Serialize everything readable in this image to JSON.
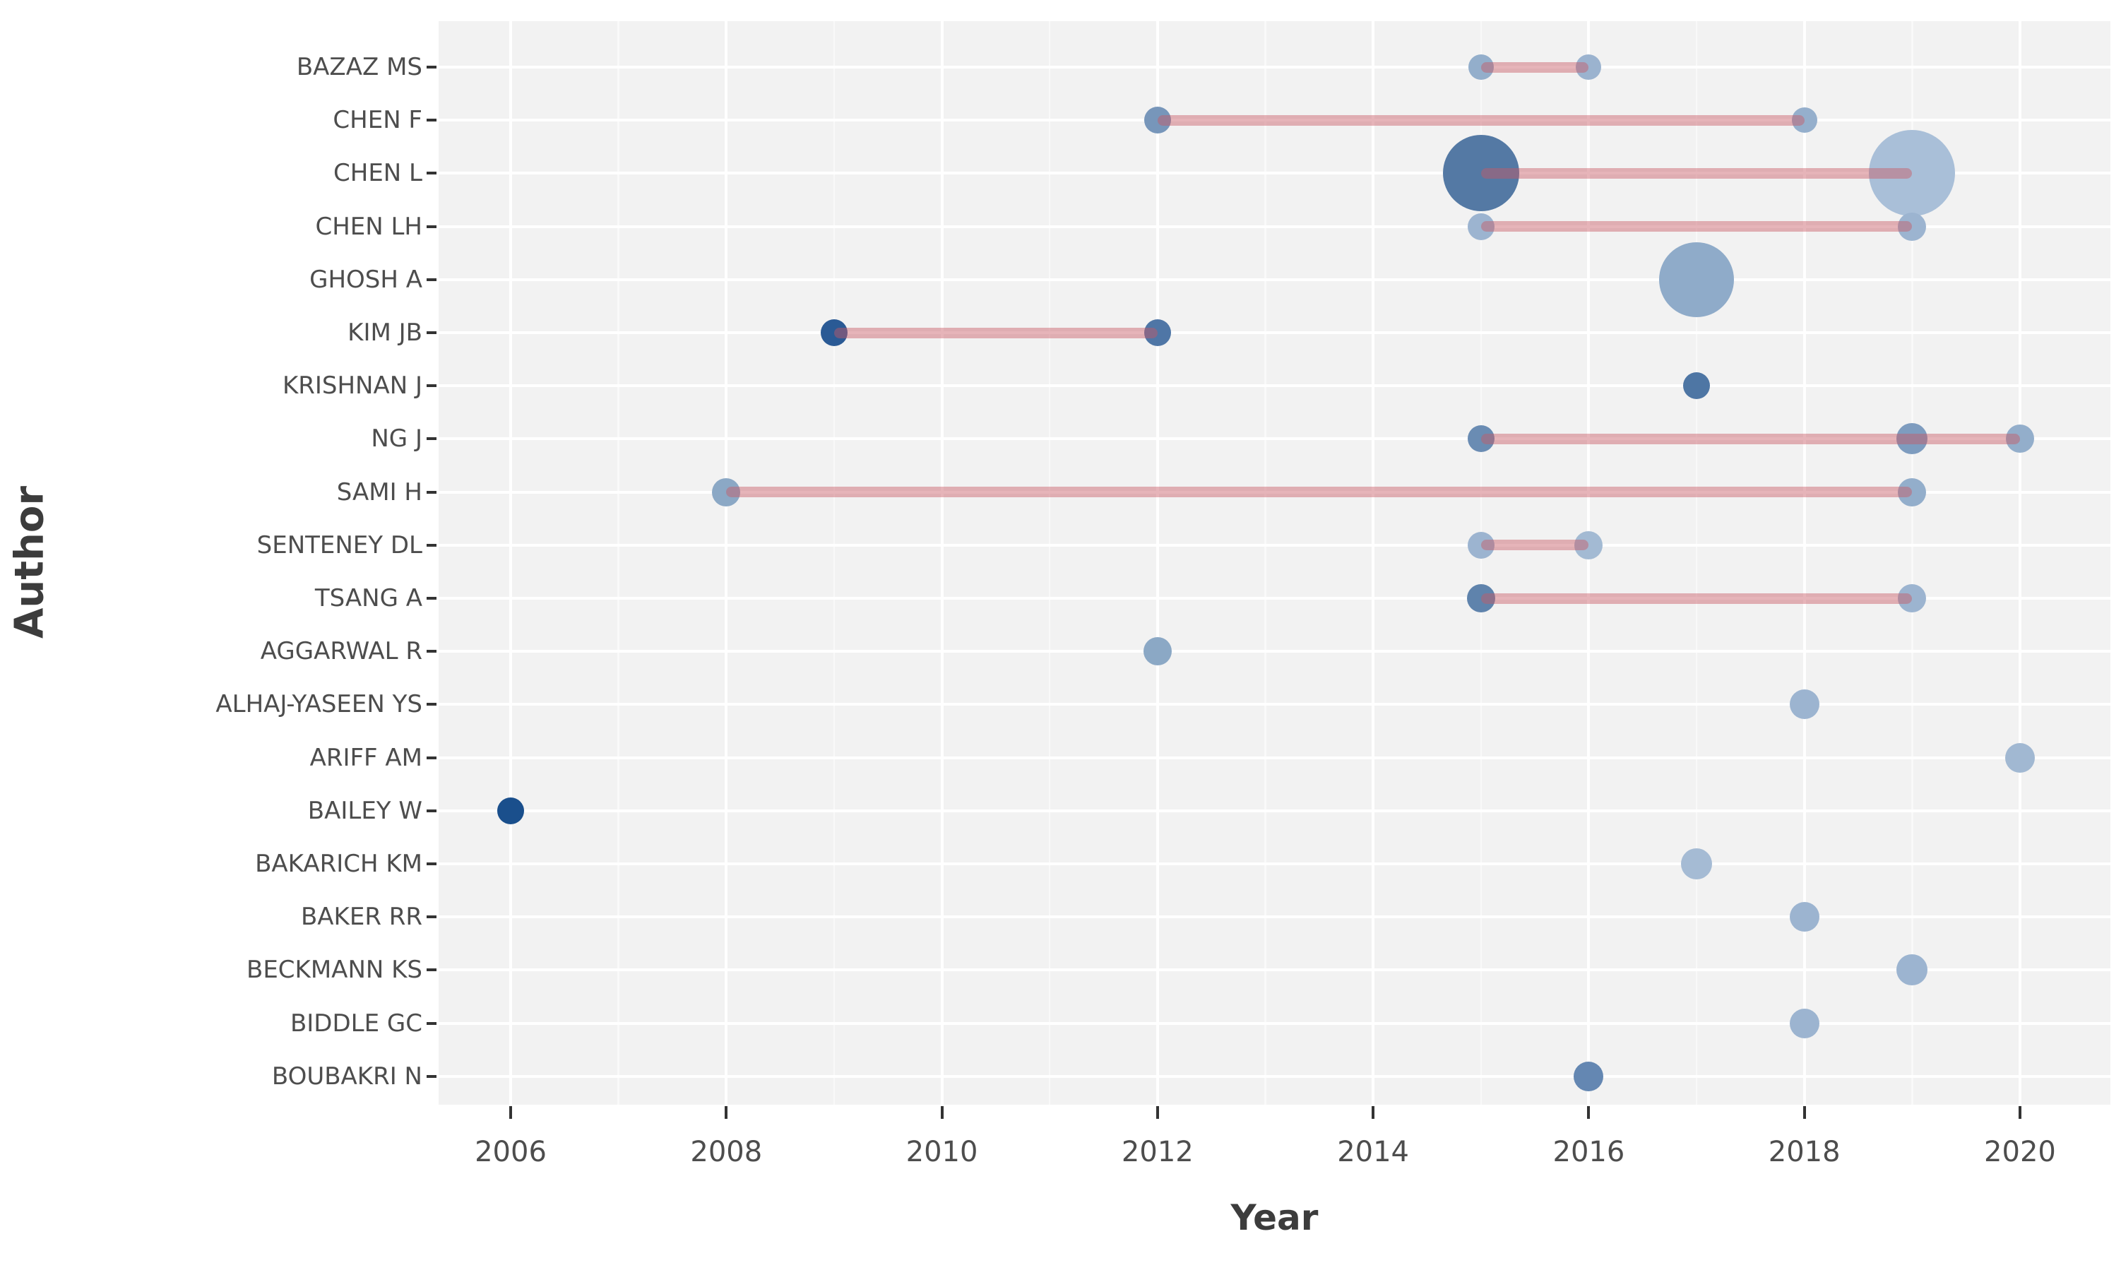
{
  "chart_data": {
    "type": "scatter",
    "title": "",
    "xlabel": "Year",
    "ylabel": "Author",
    "legend": "none",
    "grid": "on",
    "x_ticks": [
      2006,
      2008,
      2010,
      2012,
      2014,
      2016,
      2018,
      2020
    ],
    "x_minor_ticks": [
      2005,
      2007,
      2009,
      2011,
      2013,
      2015,
      2017,
      2019,
      2021
    ],
    "x_range": [
      2005.3,
      2020.85
    ],
    "colors": {
      "panel_bg": "#f2f2f2",
      "gridline": "#ffffff",
      "tick_mark": "#333333",
      "tick_text": "#4d4d4d",
      "axis_title": "#3c3c3c",
      "timeline_line": "rgba(200,88,99,0.45)"
    },
    "authors": [
      {
        "name": "BAZAZ MS",
        "line": {
          "from": 2015,
          "to": 2016
        },
        "points": [
          {
            "year": 2015,
            "r": 18,
            "color": "#93aecb"
          },
          {
            "year": 2016,
            "r": 18,
            "color": "#9bb3cf"
          }
        ]
      },
      {
        "name": "CHEN F",
        "line": {
          "from": 2012,
          "to": 2018
        },
        "points": [
          {
            "year": 2012,
            "r": 19,
            "color": "#7796ba"
          },
          {
            "year": 2018,
            "r": 18,
            "color": "#95afcc"
          }
        ]
      },
      {
        "name": "CHEN L",
        "line": {
          "from": 2015,
          "to": 2019
        },
        "points": [
          {
            "year": 2015,
            "r": 54,
            "color": "#5479a4"
          },
          {
            "year": 2019,
            "r": 61,
            "color": "#a9bfd8"
          }
        ]
      },
      {
        "name": "CHEN LH",
        "line": {
          "from": 2015,
          "to": 2019
        },
        "points": [
          {
            "year": 2015,
            "r": 19,
            "color": "#9cb4d0"
          },
          {
            "year": 2019,
            "r": 20,
            "color": "#9cb4d0"
          }
        ]
      },
      {
        "name": "GHOSH A",
        "line": null,
        "points": [
          {
            "year": 2017,
            "r": 53,
            "color": "#8fabc9"
          }
        ]
      },
      {
        "name": "KIM JB",
        "line": {
          "from": 2009,
          "to": 2012
        },
        "points": [
          {
            "year": 2009,
            "r": 19,
            "color": "#2a5a95"
          },
          {
            "year": 2012,
            "r": 19,
            "color": "#4f76a6"
          }
        ]
      },
      {
        "name": "KRISHNAN J",
        "line": null,
        "points": [
          {
            "year": 2017,
            "r": 19,
            "color": "#4e76a4"
          }
        ]
      },
      {
        "name": "NG J",
        "line": {
          "from": 2015,
          "to": 2020
        },
        "points": [
          {
            "year": 2015,
            "r": 19,
            "color": "#6a8cb3"
          },
          {
            "year": 2019,
            "r": 22,
            "color": "#7e9cbf"
          },
          {
            "year": 2020,
            "r": 20,
            "color": "#93aecb"
          }
        ]
      },
      {
        "name": "SAMI H",
        "line": {
          "from": 2008,
          "to": 2019
        },
        "points": [
          {
            "year": 2008,
            "r": 20,
            "color": "#8ba8c5"
          },
          {
            "year": 2019,
            "r": 20,
            "color": "#93aecb"
          }
        ]
      },
      {
        "name": "SENTENEY DL",
        "line": {
          "from": 2015,
          "to": 2016
        },
        "points": [
          {
            "year": 2015,
            "r": 19,
            "color": "#9cb4d0"
          },
          {
            "year": 2016,
            "r": 20,
            "color": "#a3bad3"
          }
        ]
      },
      {
        "name": "TSANG A",
        "line": {
          "from": 2015,
          "to": 2019
        },
        "points": [
          {
            "year": 2015,
            "r": 20,
            "color": "#5f83ac"
          },
          {
            "year": 2019,
            "r": 20,
            "color": "#9cb4d0"
          }
        ]
      },
      {
        "name": "AGGARWAL R",
        "line": null,
        "points": [
          {
            "year": 2012,
            "r": 20,
            "color": "#8ba8c5"
          }
        ]
      },
      {
        "name": "ALHAJ-YASEEN YS",
        "line": null,
        "points": [
          {
            "year": 2018,
            "r": 21,
            "color": "#9cb4d0"
          }
        ]
      },
      {
        "name": "ARIFF AM",
        "line": null,
        "points": [
          {
            "year": 2020,
            "r": 21,
            "color": "#a1b8d2"
          }
        ]
      },
      {
        "name": "BAILEY W",
        "line": null,
        "points": [
          {
            "year": 2006,
            "r": 19,
            "color": "#1a4f8c"
          }
        ]
      },
      {
        "name": "BAKARICH KM",
        "line": null,
        "points": [
          {
            "year": 2017,
            "r": 22,
            "color": "#a5bbd4"
          }
        ]
      },
      {
        "name": "BAKER RR",
        "line": null,
        "points": [
          {
            "year": 2018,
            "r": 21,
            "color": "#9cb4d0"
          }
        ]
      },
      {
        "name": "BECKMANN KS",
        "line": null,
        "points": [
          {
            "year": 2019,
            "r": 22,
            "color": "#9cb4d0"
          }
        ]
      },
      {
        "name": "BIDDLE GC",
        "line": null,
        "points": [
          {
            "year": 2018,
            "r": 21,
            "color": "#9cb4d0"
          }
        ]
      },
      {
        "name": "BOUBAKRI N",
        "line": null,
        "points": [
          {
            "year": 2016,
            "r": 21,
            "color": "#6487b2"
          }
        ]
      }
    ]
  }
}
